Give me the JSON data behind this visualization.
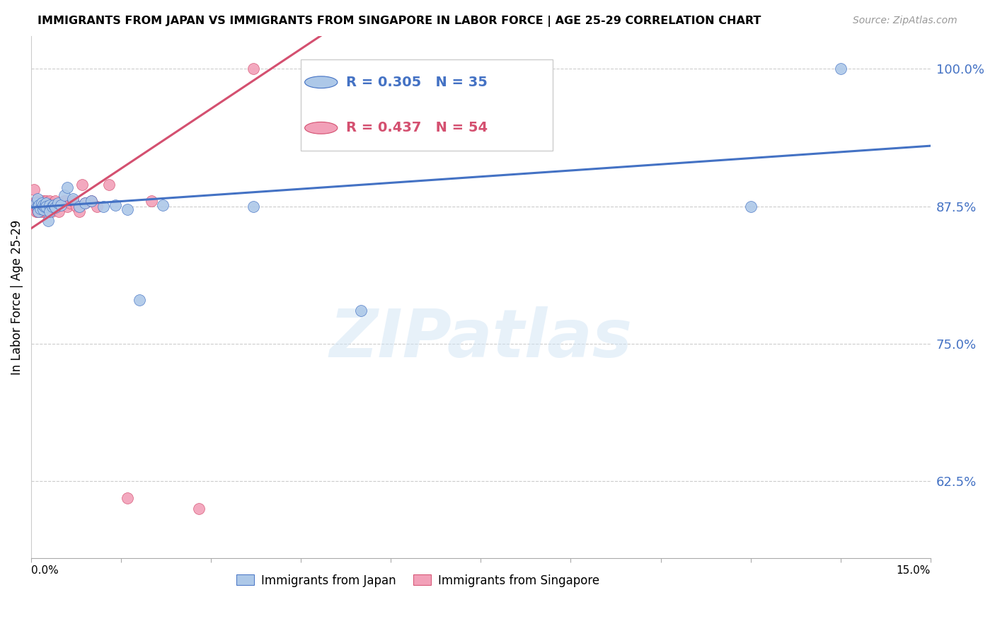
{
  "title": "IMMIGRANTS FROM JAPAN VS IMMIGRANTS FROM SINGAPORE IN LABOR FORCE | AGE 25-29 CORRELATION CHART",
  "source": "Source: ZipAtlas.com",
  "ylabel": "In Labor Force | Age 25-29",
  "yticks": [
    0.625,
    0.75,
    0.875,
    1.0
  ],
  "ytick_labels": [
    "62.5%",
    "75.0%",
    "87.5%",
    "100.0%"
  ],
  "xmin": 0.0,
  "xmax": 0.15,
  "ymin": 0.555,
  "ymax": 1.03,
  "japan_R": 0.305,
  "japan_N": 35,
  "singapore_R": 0.437,
  "singapore_N": 54,
  "japan_color": "#adc8e8",
  "japan_line_color": "#4472c4",
  "singapore_color": "#f2a0b8",
  "singapore_line_color": "#d45070",
  "japan_x": [
    0.0008,
    0.001,
    0.001,
    0.0012,
    0.0013,
    0.0015,
    0.0018,
    0.002,
    0.002,
    0.0022,
    0.0025,
    0.0025,
    0.0028,
    0.003,
    0.003,
    0.0035,
    0.0038,
    0.004,
    0.0045,
    0.005,
    0.0055,
    0.006,
    0.007,
    0.008,
    0.009,
    0.01,
    0.012,
    0.014,
    0.016,
    0.018,
    0.022,
    0.037,
    0.055,
    0.12,
    0.135
  ],
  "japan_y": [
    0.878,
    0.875,
    0.882,
    0.87,
    0.876,
    0.873,
    0.878,
    0.872,
    0.876,
    0.875,
    0.878,
    0.875,
    0.862,
    0.876,
    0.87,
    0.875,
    0.876,
    0.874,
    0.878,
    0.876,
    0.885,
    0.892,
    0.882,
    0.875,
    0.878,
    0.88,
    0.875,
    0.876,
    0.872,
    0.79,
    0.876,
    0.875,
    0.78,
    0.875,
    1.0
  ],
  "singapore_x": [
    0.0002,
    0.0003,
    0.0005,
    0.0006,
    0.0007,
    0.0008,
    0.0008,
    0.0009,
    0.001,
    0.001,
    0.001,
    0.0011,
    0.0012,
    0.0013,
    0.0013,
    0.0014,
    0.0015,
    0.0016,
    0.0017,
    0.0018,
    0.0019,
    0.002,
    0.0021,
    0.0022,
    0.0023,
    0.0024,
    0.0025,
    0.0026,
    0.0027,
    0.0028,
    0.003,
    0.0032,
    0.0034,
    0.0036,
    0.0038,
    0.004,
    0.0043,
    0.0046,
    0.005,
    0.0055,
    0.006,
    0.0065,
    0.007,
    0.0075,
    0.008,
    0.0085,
    0.009,
    0.01,
    0.011,
    0.013,
    0.016,
    0.02,
    0.028,
    0.037
  ],
  "singapore_y": [
    0.875,
    0.878,
    0.89,
    0.875,
    0.878,
    0.87,
    0.875,
    0.878,
    0.875,
    0.88,
    0.87,
    0.875,
    0.878,
    0.87,
    0.875,
    0.878,
    0.88,
    0.875,
    0.87,
    0.878,
    0.875,
    0.88,
    0.875,
    0.87,
    0.878,
    0.875,
    0.88,
    0.87,
    0.878,
    0.875,
    0.88,
    0.875,
    0.87,
    0.878,
    0.875,
    0.88,
    0.875,
    0.87,
    0.878,
    0.88,
    0.875,
    0.878,
    0.88,
    0.875,
    0.87,
    0.895,
    0.878,
    0.88,
    0.875,
    0.895,
    0.61,
    0.88,
    0.6,
    1.0
  ],
  "watermark": "ZIPatlas",
  "legend_japan_text": "R = 0.305   N = 35",
  "legend_singapore_text": "R = 0.437   N = 54",
  "bottom_legend_japan": "Immigrants from Japan",
  "bottom_legend_singapore": "Immigrants from Singapore"
}
